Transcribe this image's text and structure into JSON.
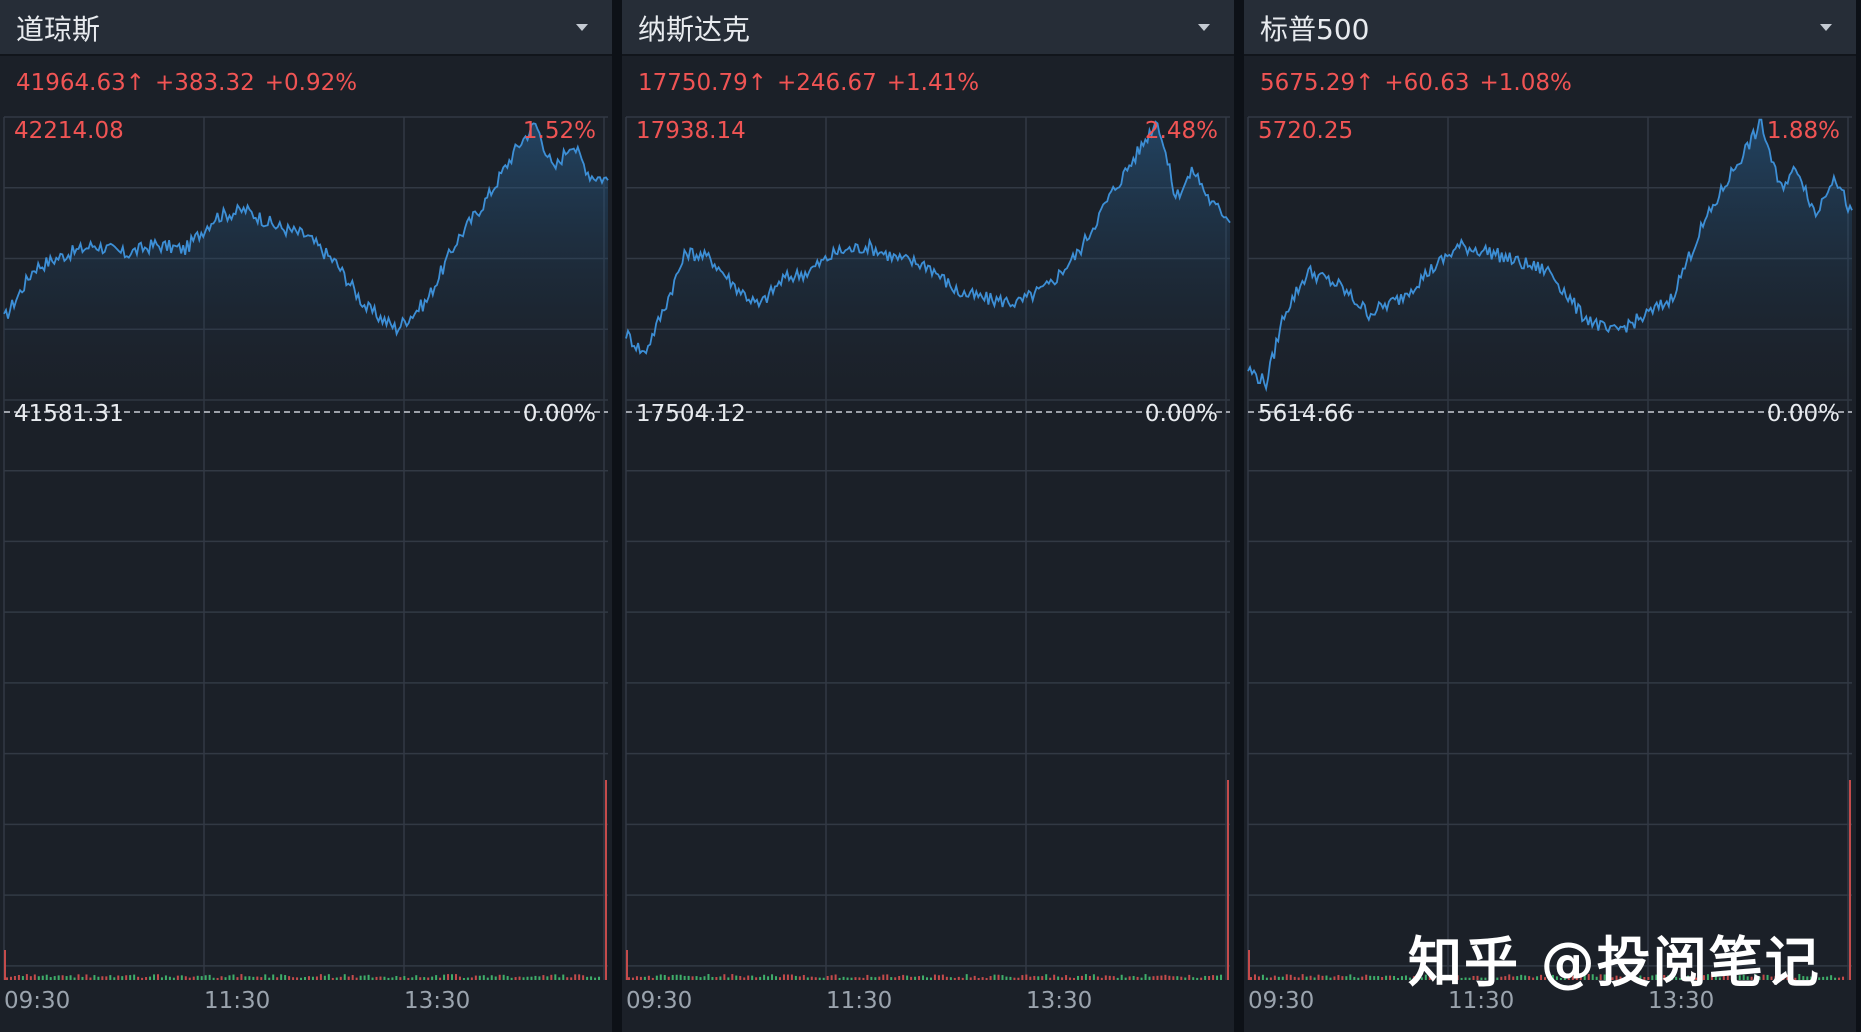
{
  "colors": {
    "up": "#f05454",
    "line": "#3d8fd6",
    "grid": "#323944",
    "text": "#e8ebef",
    "axis": "#9aa3ad"
  },
  "watermark": "知乎 @投阅笔记",
  "chart_data": [
    {
      "type": "line",
      "title": "道琼斯",
      "quote": {
        "last": "41964.63↑",
        "change": "+383.32",
        "pct": "+0.92%"
      },
      "top_price": "42214.08",
      "top_pct": "1.52%",
      "base_price": "41581.31",
      "base_pct": "0.00%",
      "time_labels": [
        "09:30",
        "11:30",
        "13:30"
      ],
      "ylim": [
        40948.54,
        42214.08
      ],
      "base": 41581.31,
      "keypoints": [
        [
          0,
          41780
        ],
        [
          0.05,
          41890
        ],
        [
          0.1,
          41918
        ],
        [
          0.15,
          41940
        ],
        [
          0.2,
          41920
        ],
        [
          0.25,
          41940
        ],
        [
          0.3,
          41930
        ],
        [
          0.35,
          42000
        ],
        [
          0.4,
          42015
        ],
        [
          0.45,
          41980
        ],
        [
          0.5,
          41960
        ],
        [
          0.55,
          41900
        ],
        [
          0.6,
          41805
        ],
        [
          0.65,
          41760
        ],
        [
          0.7,
          41820
        ],
        [
          0.75,
          41950
        ],
        [
          0.8,
          42040
        ],
        [
          0.85,
          42150
        ],
        [
          0.88,
          42200
        ],
        [
          0.91,
          42100
        ],
        [
          0.94,
          42160
        ],
        [
          0.97,
          42090
        ],
        [
          1.0,
          42080
        ]
      ]
    },
    {
      "type": "line",
      "title": "纳斯达克",
      "quote": {
        "last": "17750.79↑",
        "change": "+246.67",
        "pct": "+1.41%"
      },
      "top_price": "17938.14",
      "top_pct": "2.48%",
      "base_price": "17504.12",
      "base_pct": "0.00%",
      "time_labels": [
        "09:30",
        "11:30",
        "13:30"
      ],
      "ylim": [
        17070.1,
        17938.14
      ],
      "base": 17504.12,
      "keypoints": [
        [
          0,
          17620
        ],
        [
          0.03,
          17590
        ],
        [
          0.06,
          17650
        ],
        [
          0.1,
          17740
        ],
        [
          0.14,
          17730
        ],
        [
          0.18,
          17690
        ],
        [
          0.22,
          17660
        ],
        [
          0.26,
          17700
        ],
        [
          0.3,
          17710
        ],
        [
          0.35,
          17740
        ],
        [
          0.4,
          17748
        ],
        [
          0.45,
          17730
        ],
        [
          0.5,
          17720
        ],
        [
          0.55,
          17680
        ],
        [
          0.6,
          17670
        ],
        [
          0.65,
          17665
        ],
        [
          0.7,
          17690
        ],
        [
          0.75,
          17740
        ],
        [
          0.8,
          17820
        ],
        [
          0.85,
          17890
        ],
        [
          0.88,
          17935
        ],
        [
          0.91,
          17820
        ],
        [
          0.94,
          17860
        ],
        [
          0.97,
          17810
        ],
        [
          1.0,
          17790
        ]
      ]
    },
    {
      "type": "line",
      "title": "标普500",
      "quote": {
        "last": "5675.29↑",
        "change": "+60.63",
        "pct": "+1.08%"
      },
      "top_price": "5720.25",
      "top_pct": "1.88%",
      "base_price": "5614.66",
      "base_pct": "0.00%",
      "time_labels": [
        "09:30",
        "11:30",
        "13:30"
      ],
      "ylim": [
        5509.07,
        5720.25
      ],
      "base": 5614.66,
      "keypoints": [
        [
          0,
          5630
        ],
        [
          0.03,
          5625
        ],
        [
          0.06,
          5650
        ],
        [
          0.1,
          5665
        ],
        [
          0.15,
          5660
        ],
        [
          0.2,
          5650
        ],
        [
          0.25,
          5655
        ],
        [
          0.3,
          5665
        ],
        [
          0.35,
          5674
        ],
        [
          0.4,
          5672
        ],
        [
          0.45,
          5668
        ],
        [
          0.5,
          5665
        ],
        [
          0.55,
          5650
        ],
        [
          0.6,
          5643
        ],
        [
          0.65,
          5648
        ],
        [
          0.7,
          5655
        ],
        [
          0.75,
          5680
        ],
        [
          0.8,
          5700
        ],
        [
          0.85,
          5718
        ],
        [
          0.88,
          5695
        ],
        [
          0.91,
          5702
        ],
        [
          0.94,
          5685
        ],
        [
          0.97,
          5700
        ],
        [
          1.0,
          5685
        ]
      ]
    }
  ]
}
